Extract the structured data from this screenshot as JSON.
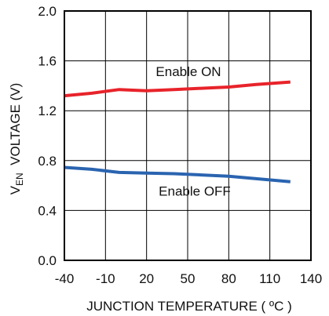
{
  "chart_data": {
    "type": "line",
    "title": "",
    "xlabel": "JUNCTION TEMPERATURE ( ºC )",
    "ylabel": {
      "prefix": "V",
      "subscript": "EN",
      "suffix": "  VOLTAGE (V)"
    },
    "xlim": [
      -40,
      140
    ],
    "ylim": [
      0,
      2.0
    ],
    "x_ticks": [
      -40,
      -10,
      20,
      50,
      80,
      110,
      140
    ],
    "x_tick_labels": [
      "-40",
      "-10",
      "20",
      "50",
      "80",
      "110",
      "140"
    ],
    "y_ticks": [
      0,
      0.4,
      0.8,
      1.2,
      1.6,
      2.0
    ],
    "y_tick_labels": [
      "0.0",
      "0.4",
      "0.8",
      "1.2",
      "1.6",
      "2.0"
    ],
    "grid": true,
    "legend": "none",
    "series": [
      {
        "name": "Enable ON",
        "color": "#e8232a",
        "x": [
          -40,
          -20,
          0,
          20,
          40,
          60,
          80,
          100,
          125
        ],
        "values": [
          1.32,
          1.34,
          1.37,
          1.36,
          1.37,
          1.38,
          1.39,
          1.41,
          1.43
        ]
      },
      {
        "name": "Enable OFF",
        "color": "#2a64b0",
        "x": [
          -40,
          -20,
          0,
          20,
          40,
          60,
          80,
          100,
          125
        ],
        "values": [
          0.745,
          0.73,
          0.705,
          0.7,
          0.695,
          0.685,
          0.675,
          0.655,
          0.63
        ]
      }
    ]
  }
}
